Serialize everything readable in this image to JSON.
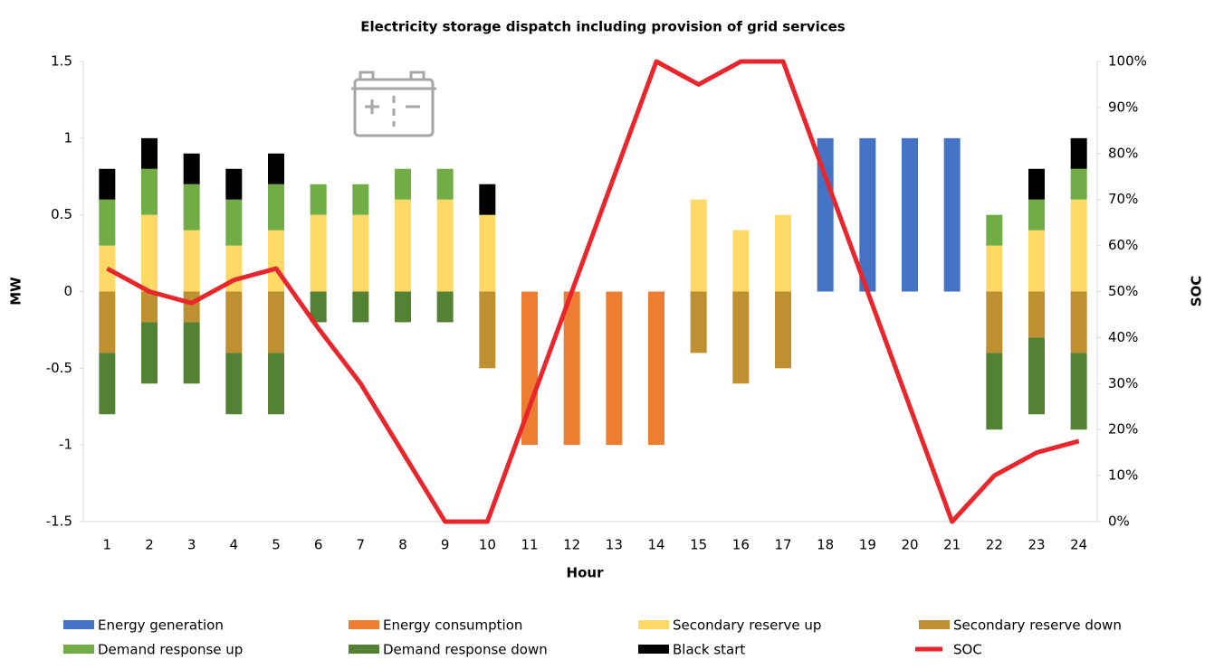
{
  "chart_data": {
    "type": "bar",
    "title": "Electricity storage dispatch including provision of grid services",
    "xlabel": "Hour",
    "ylabel": "MW",
    "y2label": "SOC",
    "categories": [
      "1",
      "2",
      "3",
      "4",
      "5",
      "6",
      "7",
      "8",
      "9",
      "10",
      "11",
      "12",
      "13",
      "14",
      "15",
      "16",
      "17",
      "18",
      "19",
      "20",
      "21",
      "22",
      "23",
      "24"
    ],
    "ylim": [
      -1.5,
      1.5
    ],
    "yticks": [
      -1.5,
      -1,
      -0.5,
      0,
      0.5,
      1,
      1.5
    ],
    "y2lim": [
      0,
      100
    ],
    "y2ticks": [
      {
        "value": 0,
        "label": "0%"
      },
      {
        "value": 10,
        "label": "10%"
      },
      {
        "value": 20,
        "label": "20%"
      },
      {
        "value": 30,
        "label": "30%"
      },
      {
        "value": 40,
        "label": "40%"
      },
      {
        "value": 50,
        "label": "50%"
      },
      {
        "value": 60,
        "label": "60%"
      },
      {
        "value": 70,
        "label": "70%"
      },
      {
        "value": 80,
        "label": "80%"
      },
      {
        "value": 90,
        "label": "90%"
      },
      {
        "value": 100,
        "label": "100%"
      }
    ],
    "grid": false,
    "legend": "bottom",
    "series": [
      {
        "name": "Energy generation",
        "color": "#4472c4",
        "values": [
          null,
          null,
          null,
          null,
          null,
          null,
          null,
          null,
          null,
          null,
          null,
          null,
          null,
          null,
          null,
          null,
          null,
          1,
          1,
          1,
          1,
          null,
          null,
          null
        ]
      },
      {
        "name": "Energy consumption",
        "color": "#ed7d31",
        "values": [
          null,
          null,
          null,
          null,
          null,
          null,
          null,
          null,
          null,
          null,
          -1,
          -1,
          -1,
          -1,
          null,
          null,
          null,
          null,
          null,
          null,
          null,
          null,
          null,
          null
        ]
      },
      {
        "name": "Secondary reserve up",
        "color": "#ffd966",
        "values": [
          0.3,
          0.5,
          0.4,
          0.3,
          0.4,
          0.5,
          0.5,
          0.6,
          0.6,
          0.5,
          null,
          null,
          null,
          null,
          0.6,
          0.4,
          0.5,
          null,
          null,
          null,
          null,
          0.3,
          0.4,
          0.6
        ]
      },
      {
        "name": "Secondary reserve down",
        "color": "#bf9030",
        "values": [
          -0.4,
          -0.2,
          -0.2,
          -0.4,
          -0.4,
          null,
          null,
          null,
          null,
          -0.5,
          null,
          null,
          null,
          null,
          -0.4,
          -0.6,
          -0.5,
          null,
          null,
          null,
          null,
          -0.4,
          -0.3,
          -0.4
        ]
      },
      {
        "name": "Demand response up",
        "color": "#70ad47",
        "values": [
          0.3,
          0.3,
          0.3,
          0.3,
          0.3,
          0.2,
          0.2,
          0.2,
          0.2,
          null,
          null,
          null,
          null,
          null,
          null,
          null,
          null,
          null,
          null,
          null,
          null,
          0.2,
          0.2,
          0.2
        ]
      },
      {
        "name": "Demand response down",
        "color": "#548235",
        "values": [
          -0.4,
          -0.4,
          -0.4,
          -0.4,
          -0.4,
          -0.2,
          -0.2,
          -0.2,
          -0.2,
          null,
          null,
          null,
          null,
          null,
          null,
          null,
          null,
          null,
          null,
          null,
          null,
          -0.5,
          -0.5,
          -0.5
        ]
      },
      {
        "name": "Black start",
        "color": "#000000",
        "values": [
          0.2,
          0.2,
          0.2,
          0.2,
          0.2,
          null,
          null,
          null,
          null,
          0.2,
          null,
          null,
          null,
          null,
          null,
          null,
          null,
          null,
          null,
          null,
          null,
          null,
          0.2,
          0.2
        ]
      },
      {
        "name": "SOC",
        "color": "#e8262b",
        "type": "line",
        "axis": "y2",
        "values": [
          55,
          50,
          47.5,
          52.5,
          55,
          42,
          30,
          15,
          0,
          0,
          25,
          50,
          75,
          100,
          95,
          100,
          100,
          75,
          50,
          25,
          0,
          10,
          15,
          17.5
        ]
      }
    ]
  }
}
